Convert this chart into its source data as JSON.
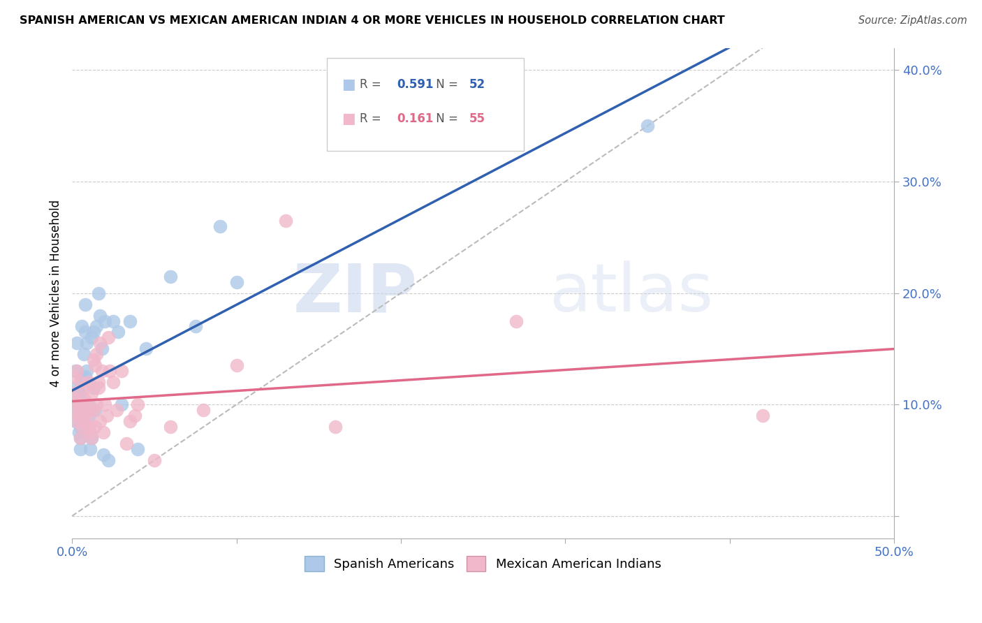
{
  "title": "SPANISH AMERICAN VS MEXICAN AMERICAN INDIAN 4 OR MORE VEHICLES IN HOUSEHOLD CORRELATION CHART",
  "source": "Source: ZipAtlas.com",
  "ylabel": "4 or more Vehicles in Household",
  "xlim": [
    0,
    0.5
  ],
  "ylim": [
    -0.02,
    0.42
  ],
  "xticks": [
    0.0,
    0.1,
    0.2,
    0.3,
    0.4,
    0.5
  ],
  "yticks": [
    0.0,
    0.1,
    0.2,
    0.3,
    0.4
  ],
  "xticklabels": [
    "0.0%",
    "",
    "",
    "",
    "",
    "50.0%"
  ],
  "yticklabels": [
    "",
    "10.0%",
    "20.0%",
    "30.0%",
    "40.0%"
  ],
  "blue_R": 0.591,
  "blue_N": 52,
  "pink_R": 0.161,
  "pink_N": 55,
  "blue_color": "#adc8e8",
  "blue_edge_color": "#adc8e8",
  "blue_line_color": "#3060b0",
  "pink_color": "#f0b8ca",
  "pink_edge_color": "#f0b8ca",
  "pink_line_color": "#e06888",
  "watermark_zip": "ZIP",
  "watermark_atlas": "atlas",
  "legend_label_blue": "Spanish Americans",
  "legend_label_pink": "Mexican American Indians",
  "blue_scatter_x": [
    0.001,
    0.002,
    0.002,
    0.002,
    0.003,
    0.003,
    0.003,
    0.004,
    0.004,
    0.004,
    0.005,
    0.005,
    0.005,
    0.005,
    0.006,
    0.006,
    0.006,
    0.007,
    0.007,
    0.007,
    0.008,
    0.008,
    0.008,
    0.009,
    0.009,
    0.01,
    0.01,
    0.011,
    0.011,
    0.012,
    0.012,
    0.013,
    0.013,
    0.014,
    0.015,
    0.016,
    0.017,
    0.018,
    0.019,
    0.02,
    0.022,
    0.025,
    0.028,
    0.03,
    0.035,
    0.04,
    0.045,
    0.06,
    0.075,
    0.09,
    0.1,
    0.35
  ],
  "blue_scatter_y": [
    0.1,
    0.085,
    0.115,
    0.13,
    0.095,
    0.105,
    0.155,
    0.11,
    0.09,
    0.075,
    0.07,
    0.08,
    0.11,
    0.06,
    0.17,
    0.125,
    0.08,
    0.085,
    0.095,
    0.145,
    0.165,
    0.125,
    0.19,
    0.155,
    0.13,
    0.1,
    0.09,
    0.095,
    0.06,
    0.07,
    0.16,
    0.165,
    0.115,
    0.095,
    0.17,
    0.2,
    0.18,
    0.15,
    0.055,
    0.175,
    0.05,
    0.175,
    0.165,
    0.1,
    0.175,
    0.06,
    0.15,
    0.215,
    0.17,
    0.26,
    0.21,
    0.35
  ],
  "pink_scatter_x": [
    0.001,
    0.001,
    0.002,
    0.002,
    0.003,
    0.003,
    0.004,
    0.004,
    0.005,
    0.005,
    0.006,
    0.006,
    0.007,
    0.007,
    0.008,
    0.008,
    0.009,
    0.009,
    0.01,
    0.01,
    0.011,
    0.011,
    0.012,
    0.012,
    0.013,
    0.013,
    0.014,
    0.014,
    0.015,
    0.015,
    0.016,
    0.016,
    0.017,
    0.017,
    0.018,
    0.019,
    0.02,
    0.021,
    0.022,
    0.023,
    0.025,
    0.027,
    0.03,
    0.033,
    0.035,
    0.038,
    0.04,
    0.05,
    0.06,
    0.08,
    0.1,
    0.13,
    0.16,
    0.27,
    0.42
  ],
  "pink_scatter_y": [
    0.11,
    0.125,
    0.095,
    0.105,
    0.085,
    0.13,
    0.1,
    0.09,
    0.12,
    0.07,
    0.08,
    0.095,
    0.105,
    0.085,
    0.1,
    0.115,
    0.08,
    0.09,
    0.12,
    0.08,
    0.075,
    0.095,
    0.07,
    0.11,
    0.14,
    0.095,
    0.135,
    0.08,
    0.145,
    0.1,
    0.115,
    0.12,
    0.085,
    0.155,
    0.13,
    0.075,
    0.1,
    0.09,
    0.16,
    0.13,
    0.12,
    0.095,
    0.13,
    0.065,
    0.085,
    0.09,
    0.1,
    0.05,
    0.08,
    0.095,
    0.135,
    0.265,
    0.08,
    0.175,
    0.09
  ]
}
